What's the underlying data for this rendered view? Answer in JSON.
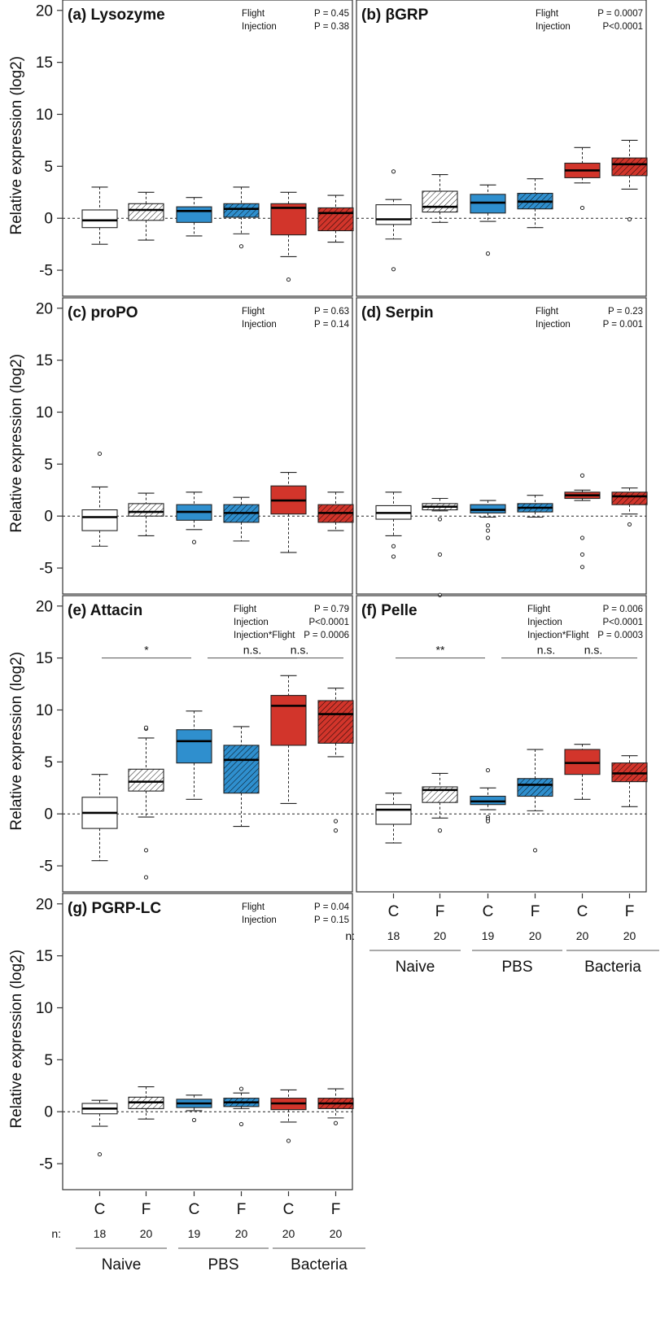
{
  "figure": {
    "ylabel": "Relative expression (log2)",
    "categories": [
      "C",
      "F",
      "C",
      "F",
      "C",
      "F"
    ],
    "n_prefix": "n:",
    "n_values": [
      "18",
      "20",
      "19",
      "20",
      "20",
      "20"
    ],
    "groups": [
      "Naive",
      "PBS",
      "Bacteria"
    ],
    "colors": {
      "naive": "#ffffff",
      "pbs": "#2f8fce",
      "bacteria": "#d2352b"
    }
  },
  "chart_data": [
    {
      "type": "box",
      "title": "(a) Lysozyme",
      "ylabel": "Relative expression (log2)",
      "ylim": [
        -7.5,
        21
      ],
      "yticks": [
        "20",
        "15",
        "10",
        "5",
        "0",
        "-5"
      ],
      "reference_line": 0,
      "stats": [
        {
          "label": "Flight",
          "value": "P = 0.45"
        },
        {
          "label": "Injection",
          "value": "P = 0.38"
        }
      ],
      "series": [
        {
          "name": "C",
          "group": "Naive",
          "fill": "#ffffff",
          "hatched": false,
          "min": -2.5,
          "q1": -0.9,
          "median": -0.2,
          "q3": 0.8,
          "max": 3.0,
          "outliers": []
        },
        {
          "name": "F",
          "group": "Naive",
          "fill": "#ffffff",
          "hatched": true,
          "min": -2.1,
          "q1": -0.2,
          "median": 0.8,
          "q3": 1.4,
          "max": 2.5,
          "outliers": []
        },
        {
          "name": "C",
          "group": "PBS",
          "fill": "#2f8fce",
          "hatched": false,
          "min": -1.7,
          "q1": -0.4,
          "median": 0.7,
          "q3": 1.1,
          "max": 2.0,
          "outliers": []
        },
        {
          "name": "F",
          "group": "PBS",
          "fill": "#2f8fce",
          "hatched": true,
          "min": -1.5,
          "q1": 0.1,
          "median": 0.9,
          "q3": 1.4,
          "max": 3.0,
          "outliers": [
            -2.7
          ]
        },
        {
          "name": "C",
          "group": "Bacteria",
          "fill": "#d2352b",
          "hatched": false,
          "min": -3.7,
          "q1": -1.6,
          "median": 1.0,
          "q3": 1.4,
          "max": 2.5,
          "outliers": [
            -5.9
          ]
        },
        {
          "name": "F",
          "group": "Bacteria",
          "fill": "#d2352b",
          "hatched": true,
          "min": -2.3,
          "q1": -1.2,
          "median": 0.5,
          "q3": 1.0,
          "max": 2.2,
          "outliers": []
        }
      ]
    },
    {
      "type": "box",
      "title": "(b) βGRP",
      "ylabel": "Relative expression (log2)",
      "ylim": [
        -7.5,
        21
      ],
      "yticks": [
        "20",
        "15",
        "10",
        "5",
        "0",
        "-5"
      ],
      "reference_line": 0,
      "stats": [
        {
          "label": "Flight",
          "value": "P = 0.0007"
        },
        {
          "label": "Injection",
          "value": "P<0.0001"
        }
      ],
      "series": [
        {
          "name": "C",
          "group": "Naive",
          "fill": "#ffffff",
          "hatched": false,
          "min": -2.0,
          "q1": -0.6,
          "median": -0.1,
          "q3": 1.3,
          "max": 1.8,
          "outliers": [
            4.5,
            -4.9
          ]
        },
        {
          "name": "F",
          "group": "Naive",
          "fill": "#ffffff",
          "hatched": true,
          "min": -0.4,
          "q1": 0.6,
          "median": 1.1,
          "q3": 2.6,
          "max": 4.2,
          "outliers": []
        },
        {
          "name": "C",
          "group": "PBS",
          "fill": "#2f8fce",
          "hatched": false,
          "min": -0.3,
          "q1": 0.5,
          "median": 1.5,
          "q3": 2.3,
          "max": 3.2,
          "outliers": [
            -3.4
          ]
        },
        {
          "name": "F",
          "group": "PBS",
          "fill": "#2f8fce",
          "hatched": true,
          "min": -0.9,
          "q1": 0.9,
          "median": 1.6,
          "q3": 2.4,
          "max": 3.8,
          "outliers": []
        },
        {
          "name": "C",
          "group": "Bacteria",
          "fill": "#d2352b",
          "hatched": false,
          "min": 3.4,
          "q1": 3.9,
          "median": 4.6,
          "q3": 5.3,
          "max": 6.8,
          "outliers": [
            1.0
          ]
        },
        {
          "name": "F",
          "group": "Bacteria",
          "fill": "#d2352b",
          "hatched": true,
          "min": 2.8,
          "q1": 4.1,
          "median": 5.2,
          "q3": 5.8,
          "max": 7.5,
          "outliers": [
            -0.1
          ]
        }
      ]
    },
    {
      "type": "box",
      "title": "(c) proPO",
      "ylabel": "Relative expression (log2)",
      "ylim": [
        -7.5,
        21
      ],
      "yticks": [
        "20",
        "15",
        "10",
        "5",
        "0",
        "-5"
      ],
      "reference_line": 0,
      "stats": [
        {
          "label": "Flight",
          "value": "P = 0.63"
        },
        {
          "label": "Injection",
          "value": "P = 0.14"
        }
      ],
      "series": [
        {
          "name": "C",
          "group": "Naive",
          "fill": "#ffffff",
          "hatched": false,
          "min": -2.9,
          "q1": -1.4,
          "median": -0.1,
          "q3": 0.6,
          "max": 2.8,
          "outliers": [
            6.0
          ]
        },
        {
          "name": "F",
          "group": "Naive",
          "fill": "#ffffff",
          "hatched": true,
          "min": -1.9,
          "q1": 0.0,
          "median": 0.4,
          "q3": 1.2,
          "max": 2.2,
          "outliers": []
        },
        {
          "name": "C",
          "group": "PBS",
          "fill": "#2f8fce",
          "hatched": false,
          "min": -1.3,
          "q1": -0.4,
          "median": 0.4,
          "q3": 1.1,
          "max": 2.3,
          "outliers": [
            -2.5
          ]
        },
        {
          "name": "F",
          "group": "PBS",
          "fill": "#2f8fce",
          "hatched": true,
          "min": -2.4,
          "q1": -0.6,
          "median": 0.3,
          "q3": 1.1,
          "max": 1.8,
          "outliers": []
        },
        {
          "name": "C",
          "group": "Bacteria",
          "fill": "#d2352b",
          "hatched": false,
          "min": -3.5,
          "q1": 0.2,
          "median": 1.5,
          "q3": 2.9,
          "max": 4.2,
          "outliers": []
        },
        {
          "name": "F",
          "group": "Bacteria",
          "fill": "#d2352b",
          "hatched": true,
          "min": -1.4,
          "q1": -0.6,
          "median": 0.3,
          "q3": 1.1,
          "max": 2.3,
          "outliers": []
        }
      ]
    },
    {
      "type": "box",
      "title": "(d) Serpin",
      "ylabel": "Relative expression (log2)",
      "ylim": [
        -7.5,
        21
      ],
      "yticks": [
        "20",
        "15",
        "10",
        "5",
        "0",
        "-5"
      ],
      "reference_line": 0,
      "stats": [
        {
          "label": "Flight",
          "value": "P = 0.23"
        },
        {
          "label": "Injection",
          "value": "P = 0.001"
        }
      ],
      "series": [
        {
          "name": "C",
          "group": "Naive",
          "fill": "#ffffff",
          "hatched": false,
          "min": -1.9,
          "q1": -0.3,
          "median": 0.3,
          "q3": 1.0,
          "max": 2.3,
          "outliers": [
            -2.9,
            -3.9
          ]
        },
        {
          "name": "F",
          "group": "Naive",
          "fill": "#ffffff",
          "hatched": true,
          "min": 0.5,
          "q1": 0.6,
          "median": 0.9,
          "q3": 1.2,
          "max": 1.7,
          "outliers": [
            -0.3,
            -3.7,
            -7.6
          ]
        },
        {
          "name": "C",
          "group": "PBS",
          "fill": "#2f8fce",
          "hatched": false,
          "min": -0.1,
          "q1": 0.3,
          "median": 0.6,
          "q3": 1.1,
          "max": 1.5,
          "outliers": [
            -0.9,
            -1.4,
            -2.1
          ]
        },
        {
          "name": "F",
          "group": "PBS",
          "fill": "#2f8fce",
          "hatched": true,
          "min": -0.1,
          "q1": 0.4,
          "median": 0.8,
          "q3": 1.2,
          "max": 2.0,
          "outliers": []
        },
        {
          "name": "C",
          "group": "Bacteria",
          "fill": "#d2352b",
          "hatched": false,
          "min": 1.5,
          "q1": 1.7,
          "median": 2.0,
          "q3": 2.3,
          "max": 2.5,
          "outliers": [
            3.9,
            -2.1,
            -3.7,
            -4.9
          ]
        },
        {
          "name": "F",
          "group": "Bacteria",
          "fill": "#d2352b",
          "hatched": true,
          "min": 0.2,
          "q1": 1.1,
          "median": 1.9,
          "q3": 2.3,
          "max": 2.7,
          "outliers": [
            -0.8
          ]
        }
      ]
    },
    {
      "type": "box",
      "title": "(e) Attacin",
      "ylabel": "Relative expression (log2)",
      "ylim": [
        -7.5,
        21
      ],
      "yticks": [
        "20",
        "15",
        "10",
        "5",
        "0",
        "-5"
      ],
      "reference_line": 0,
      "stats": [
        {
          "label": "Flight",
          "value": "P = 0.79"
        },
        {
          "label": "Injection",
          "value": "P<0.0001"
        },
        {
          "label": "Injection*Flight",
          "value": "P = 0.0006"
        }
      ],
      "significance": [
        {
          "label": "*",
          "group": 0
        },
        {
          "label": "n.s.",
          "group": 1
        },
        {
          "label": "n.s.",
          "group": 2
        }
      ],
      "series": [
        {
          "name": "C",
          "group": "Naive",
          "fill": "#ffffff",
          "hatched": false,
          "min": -4.5,
          "q1": -1.4,
          "median": 0.1,
          "q3": 1.6,
          "max": 3.8,
          "outliers": []
        },
        {
          "name": "F",
          "group": "Naive",
          "fill": "#ffffff",
          "hatched": true,
          "min": -0.3,
          "q1": 2.2,
          "median": 3.1,
          "q3": 4.3,
          "max": 7.3,
          "outliers": [
            8.2,
            8.3,
            -3.5,
            -6.1
          ]
        },
        {
          "name": "C",
          "group": "PBS",
          "fill": "#2f8fce",
          "hatched": false,
          "min": 1.4,
          "q1": 4.9,
          "median": 7.0,
          "q3": 8.1,
          "max": 9.9,
          "outliers": []
        },
        {
          "name": "F",
          "group": "PBS",
          "fill": "#2f8fce",
          "hatched": true,
          "min": -1.2,
          "q1": 2.0,
          "median": 5.2,
          "q3": 6.6,
          "max": 8.4,
          "outliers": []
        },
        {
          "name": "C",
          "group": "Bacteria",
          "fill": "#d2352b",
          "hatched": false,
          "min": 1.0,
          "q1": 6.6,
          "median": 10.4,
          "q3": 11.4,
          "max": 13.3,
          "outliers": []
        },
        {
          "name": "F",
          "group": "Bacteria",
          "fill": "#d2352b",
          "hatched": true,
          "min": 5.5,
          "q1": 6.8,
          "median": 9.6,
          "q3": 10.9,
          "max": 12.1,
          "outliers": [
            -0.7,
            -1.6
          ]
        }
      ]
    },
    {
      "type": "box",
      "title": "(f) Pelle",
      "ylabel": "Relative expression (log2)",
      "ylim": [
        -7.5,
        21
      ],
      "yticks": [
        "20",
        "15",
        "10",
        "5",
        "0",
        "-5"
      ],
      "reference_line": 0,
      "stats": [
        {
          "label": "Flight",
          "value": "P = 0.006"
        },
        {
          "label": "Injection",
          "value": "P<0.0001"
        },
        {
          "label": "Injection*Flight",
          "value": "P = 0.0003"
        }
      ],
      "significance": [
        {
          "label": "**",
          "group": 0
        },
        {
          "label": "n.s.",
          "group": 1
        },
        {
          "label": "n.s.",
          "group": 2
        }
      ],
      "series": [
        {
          "name": "C",
          "group": "Naive",
          "fill": "#ffffff",
          "hatched": false,
          "min": -2.8,
          "q1": -1.0,
          "median": 0.4,
          "q3": 0.9,
          "max": 2.0,
          "outliers": []
        },
        {
          "name": "F",
          "group": "Naive",
          "fill": "#ffffff",
          "hatched": true,
          "min": -0.4,
          "q1": 1.1,
          "median": 2.3,
          "q3": 2.6,
          "max": 3.9,
          "outliers": [
            -1.6
          ]
        },
        {
          "name": "C",
          "group": "PBS",
          "fill": "#2f8fce",
          "hatched": false,
          "min": 0.4,
          "q1": 0.9,
          "median": 1.2,
          "q3": 1.7,
          "max": 2.5,
          "outliers": [
            4.2,
            -0.3,
            -0.5,
            -0.7
          ]
        },
        {
          "name": "F",
          "group": "PBS",
          "fill": "#2f8fce",
          "hatched": true,
          "min": 0.3,
          "q1": 1.7,
          "median": 2.8,
          "q3": 3.4,
          "max": 6.2,
          "outliers": [
            -3.5
          ]
        },
        {
          "name": "C",
          "group": "Bacteria",
          "fill": "#d2352b",
          "hatched": false,
          "min": 1.4,
          "q1": 3.8,
          "median": 4.9,
          "q3": 6.2,
          "max": 6.7,
          "outliers": []
        },
        {
          "name": "F",
          "group": "Bacteria",
          "fill": "#d2352b",
          "hatched": true,
          "min": 0.7,
          "q1": 3.1,
          "median": 3.9,
          "q3": 4.9,
          "max": 5.6,
          "outliers": []
        }
      ]
    },
    {
      "type": "box",
      "title": "(g) PGRP-LC",
      "ylabel": "Relative expression (log2)",
      "ylim": [
        -7.5,
        21
      ],
      "yticks": [
        "20",
        "15",
        "10",
        "5",
        "0",
        "-5"
      ],
      "reference_line": 0,
      "stats": [
        {
          "label": "Flight",
          "value": "P = 0.04"
        },
        {
          "label": "Injection",
          "value": "P = 0.15"
        }
      ],
      "series": [
        {
          "name": "C",
          "group": "Naive",
          "fill": "#ffffff",
          "hatched": false,
          "min": -1.4,
          "q1": -0.2,
          "median": 0.3,
          "q3": 0.8,
          "max": 1.1,
          "outliers": [
            -4.1
          ]
        },
        {
          "name": "F",
          "group": "Naive",
          "fill": "#ffffff",
          "hatched": true,
          "min": -0.7,
          "q1": 0.3,
          "median": 0.9,
          "q3": 1.4,
          "max": 2.4,
          "outliers": []
        },
        {
          "name": "C",
          "group": "PBS",
          "fill": "#2f8fce",
          "hatched": false,
          "min": 0.1,
          "q1": 0.4,
          "median": 0.8,
          "q3": 1.2,
          "max": 1.6,
          "outliers": [
            -0.8
          ]
        },
        {
          "name": "F",
          "group": "PBS",
          "fill": "#2f8fce",
          "hatched": true,
          "min": 0.3,
          "q1": 0.5,
          "median": 0.9,
          "q3": 1.3,
          "max": 1.8,
          "outliers": [
            2.2,
            -1.2
          ]
        },
        {
          "name": "C",
          "group": "Bacteria",
          "fill": "#d2352b",
          "hatched": false,
          "min": -1.0,
          "q1": 0.2,
          "median": 0.8,
          "q3": 1.3,
          "max": 2.1,
          "outliers": [
            -2.8
          ]
        },
        {
          "name": "F",
          "group": "Bacteria",
          "fill": "#d2352b",
          "hatched": true,
          "min": -0.6,
          "q1": 0.3,
          "median": 0.8,
          "q3": 1.3,
          "max": 2.2,
          "outliers": [
            -1.1
          ]
        }
      ]
    }
  ]
}
